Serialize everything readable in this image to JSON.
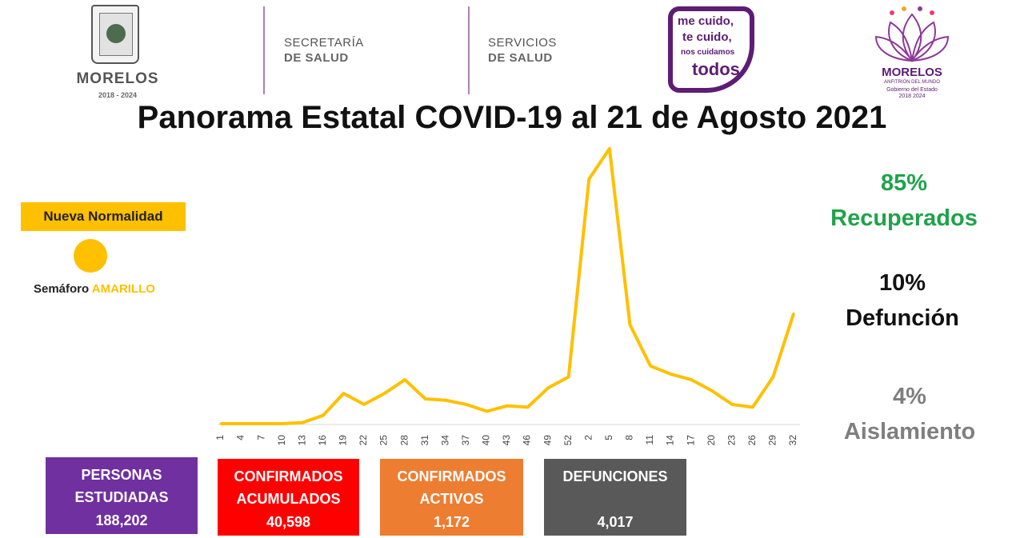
{
  "header": {
    "logo_morelos": {
      "name": "MORELOS",
      "years": "2018 - 2024"
    },
    "dept1": {
      "line1": "SECRETARÍA",
      "line2": "DE SALUD"
    },
    "dept2": {
      "line1": "SERVICIOS",
      "line2": "DE SALUD"
    },
    "campaign": {
      "line1": "me cuido,",
      "line2": "te cuido,",
      "line3": "nos cuidamos",
      "line4": "todos"
    },
    "logo_gobierno": {
      "name": "MORELOS",
      "subtitle": "ANFITRIÓN DEL MUNDO",
      "gobierno": "Gobierno del Estado",
      "years": "2018 2024"
    }
  },
  "title": "Panorama Estatal COVID-19 al 21 de Agosto 2021",
  "semaforo": {
    "label": "Nueva Normalidad",
    "text_prefix": "Semáforo ",
    "text_color_word": "AMARILLO",
    "color": "#ffc000"
  },
  "stats": {
    "recuperados": {
      "pct": "85%",
      "label": "Recuperados",
      "color": "#1fa34a"
    },
    "defuncion": {
      "pct": "10%",
      "label": "Defunción",
      "color": "#111111"
    },
    "aislamiento": {
      "pct": "4%",
      "label": "Aislamiento",
      "color": "#7f7f7f"
    }
  },
  "boxes": [
    {
      "title_line1": "PERSONAS",
      "title_line2": "ESTUDIADAS",
      "value": "188,202",
      "color": "#7030a0"
    },
    {
      "title_line1": "CONFIRMADOS",
      "title_line2": "ACUMULADOS",
      "value": "40,598",
      "color": "#ff0000"
    },
    {
      "title_line1": "CONFIRMADOS",
      "title_line2": "ACTIVOS",
      "value": "1,172",
      "color": "#ed7d31"
    },
    {
      "title_line1": "DEFUNCIONES",
      "title_line2": "",
      "value": "4,017",
      "color": "#595959"
    }
  ],
  "chart_data": {
    "type": "line",
    "x": [
      "1",
      "4",
      "7",
      "10",
      "13",
      "16",
      "19",
      "22",
      "25",
      "28",
      "31",
      "34",
      "37",
      "40",
      "43",
      "46",
      "49",
      "52",
      "2",
      "5",
      "8",
      "11",
      "14",
      "17",
      "20",
      "23",
      "26",
      "29",
      "32"
    ],
    "series": [
      {
        "color": "#ffc000",
        "values": [
          0,
          0,
          0,
          0,
          0.4,
          3,
          11,
          7,
          11,
          16,
          9,
          8.5,
          7,
          4.5,
          6.5,
          6,
          13,
          17,
          89,
          100,
          36,
          21,
          18,
          16,
          12,
          7,
          6,
          17,
          40
        ]
      }
    ],
    "ylim": [
      0,
      100
    ],
    "grid": false
  }
}
